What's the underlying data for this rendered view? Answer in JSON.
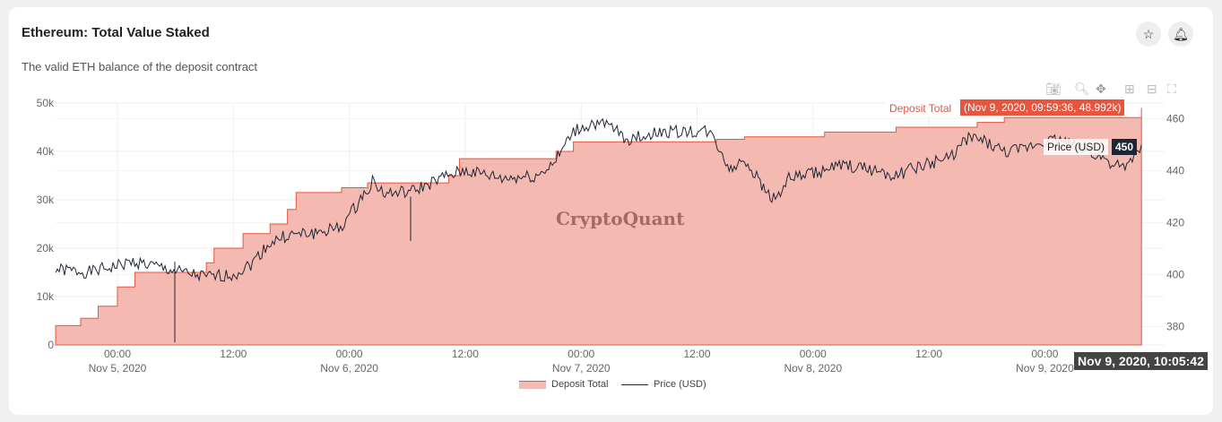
{
  "header": {
    "title": "Ethereum: Total Value Staked",
    "subtitle": "The valid ETH balance of the deposit contract"
  },
  "icons": [
    "star-icon",
    "bell-icon",
    "camera-icon",
    "zoom-icon",
    "pan-icon",
    "zoom-in-icon",
    "zoom-out-icon",
    "autoscale-icon"
  ],
  "watermark": "CryptoQuant",
  "tooltips": {
    "deposit_label": "Deposit Total",
    "deposit_value": "(Nov 9, 2020, 09:59:36, 48.992k)",
    "price_label": "Price (USD)",
    "price_value": "450",
    "time": "Nov 9, 2020, 10:05:42"
  },
  "chart_data": {
    "type": "area+line",
    "title": "Ethereum: Total Value Staked",
    "x_unit": "hours since Nov 5, 2020 00:00",
    "x_ticks": [
      {
        "h": 0,
        "l1": "00:00",
        "l2": "Nov 5, 2020"
      },
      {
        "h": 12,
        "l1": "12:00",
        "l2": ""
      },
      {
        "h": 24,
        "l1": "00:00",
        "l2": "Nov 6, 2020"
      },
      {
        "h": 36,
        "l1": "12:00",
        "l2": ""
      },
      {
        "h": 48,
        "l1": "00:00",
        "l2": "Nov 7, 2020"
      },
      {
        "h": 60,
        "l1": "12:00",
        "l2": ""
      },
      {
        "h": 72,
        "l1": "00:00",
        "l2": "Nov 8, 2020"
      },
      {
        "h": 84,
        "l1": "12:00",
        "l2": ""
      },
      {
        "h": 96,
        "l1": "00:00",
        "l2": "Nov 9, 2020"
      },
      {
        "h": 108,
        "l1": "12:00",
        "l2": ""
      }
    ],
    "y_left": {
      "range": [
        0,
        50
      ],
      "ticks": [
        "0",
        "10k",
        "20k",
        "30k",
        "40k",
        "50k"
      ]
    },
    "y_right": {
      "range": [
        373,
        466
      ],
      "ticks": [
        "380",
        "400",
        "420",
        "440",
        "460"
      ]
    },
    "legend": [
      "Deposit Total",
      "Price (USD)"
    ],
    "legend_position": "bottom-center",
    "colors": {
      "deposit_fill": "#f4bab2",
      "deposit_line": "#e8553f",
      "price": "#1e2633"
    },
    "series": [
      {
        "name": "Deposit Total",
        "unit": "k ETH",
        "points": [
          [
            -6.4,
            4
          ],
          [
            -3.8,
            5.5
          ],
          [
            -2,
            8
          ],
          [
            0,
            12
          ],
          [
            1.8,
            15
          ],
          [
            9.2,
            17
          ],
          [
            10,
            20
          ],
          [
            13,
            23
          ],
          [
            15.8,
            25
          ],
          [
            17.6,
            28
          ],
          [
            18.5,
            31.5
          ],
          [
            23.2,
            32.5
          ],
          [
            25.9,
            33.5
          ],
          [
            34.3,
            35
          ],
          [
            35.4,
            38.5
          ],
          [
            45.4,
            40
          ],
          [
            47.2,
            42
          ],
          [
            62,
            42.5
          ],
          [
            64.9,
            43
          ],
          [
            73.2,
            44
          ],
          [
            80.6,
            45
          ],
          [
            89,
            46
          ],
          [
            91.8,
            47
          ],
          [
            106,
            49
          ]
        ]
      },
      {
        "name": "Price (USD)",
        "unit": "USD",
        "points": [
          [
            -6.4,
            402
          ],
          [
            -2.9,
            401
          ],
          [
            1.8,
            405
          ],
          [
            6.4,
            401
          ],
          [
            9.2,
            399
          ],
          [
            12,
            400
          ],
          [
            13.8,
            404
          ],
          [
            15.7,
            412
          ],
          [
            17.5,
            415
          ],
          [
            20.3,
            416
          ],
          [
            23.1,
            418
          ],
          [
            25,
            428
          ],
          [
            26.4,
            436
          ],
          [
            27.7,
            431
          ],
          [
            30.5,
            432
          ],
          [
            34.2,
            438
          ],
          [
            36.1,
            440
          ],
          [
            39.8,
            437
          ],
          [
            43.5,
            438
          ],
          [
            45.4,
            444
          ],
          [
            47.2,
            455
          ],
          [
            49.1,
            458
          ],
          [
            51,
            457
          ],
          [
            52.8,
            452
          ],
          [
            56.5,
            455
          ],
          [
            58.4,
            455
          ],
          [
            61.2,
            455
          ],
          [
            62.1,
            450
          ],
          [
            63.5,
            440
          ],
          [
            64.9,
            445
          ],
          [
            66.7,
            434
          ],
          [
            68.1,
            429
          ],
          [
            69.5,
            437
          ],
          [
            73.2,
            440
          ],
          [
            75.1,
            442
          ],
          [
            78.8,
            440
          ],
          [
            80.6,
            438
          ],
          [
            82.5,
            441
          ],
          [
            86.2,
            445
          ],
          [
            88.1,
            453
          ],
          [
            89.9,
            451
          ],
          [
            91.8,
            447
          ],
          [
            93.6,
            448
          ],
          [
            95.5,
            451
          ],
          [
            97.4,
            452
          ],
          [
            100.1,
            448
          ],
          [
            102,
            445
          ],
          [
            104.3,
            440
          ],
          [
            106,
            450
          ]
        ]
      }
    ]
  }
}
